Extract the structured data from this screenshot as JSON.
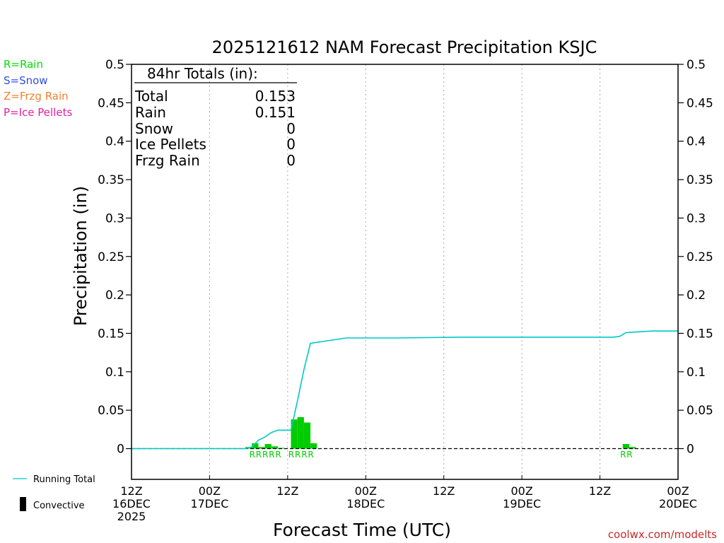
{
  "chart_data": {
    "type": "bar",
    "title": "2025121612 NAM Forecast Precipitation KSJC",
    "ylabel": "Precipitation (in)",
    "xlabel": "Forecast Time (UTC)",
    "ylim": [
      -0.04,
      0.5
    ],
    "y_ticks": [
      0,
      0.05,
      0.1,
      0.15,
      0.2,
      0.25,
      0.3,
      0.35,
      0.4,
      0.45,
      0.5
    ],
    "y_tick_labels": [
      "0",
      "0.05",
      "0.1",
      "0.15",
      "0.2",
      "0.25",
      "0.3",
      "0.35",
      "0.4",
      "0.45",
      "0.5"
    ],
    "x_range_hours": [
      0,
      84
    ],
    "x_ticks": [
      {
        "hour": 0,
        "lines": [
          "12Z",
          "16DEC",
          "2025"
        ]
      },
      {
        "hour": 12,
        "lines": [
          "00Z",
          "17DEC"
        ]
      },
      {
        "hour": 24,
        "lines": [
          "12Z"
        ]
      },
      {
        "hour": 36,
        "lines": [
          "00Z",
          "18DEC"
        ]
      },
      {
        "hour": 48,
        "lines": [
          "12Z"
        ]
      },
      {
        "hour": 60,
        "lines": [
          "00Z",
          "19DEC"
        ]
      },
      {
        "hour": 72,
        "lines": [
          "12Z"
        ]
      },
      {
        "hour": 84,
        "lines": [
          "00Z",
          "20DEC"
        ]
      }
    ],
    "gridlines_hours": [
      12,
      24,
      36,
      48,
      60,
      72
    ],
    "grid": true,
    "bars": {
      "name": "Rain",
      "color": "#00cc00",
      "hours": [
        18,
        19,
        20,
        21,
        22,
        23,
        25,
        26,
        27,
        28,
        76,
        77
      ],
      "values": [
        0.002,
        0.007,
        0.002,
        0.006,
        0.003,
        0.001,
        0.038,
        0.041,
        0.034,
        0.007,
        0.006,
        0.002
      ]
    },
    "ptype_labels": {
      "color": "#00cc00",
      "hours": [
        19,
        20,
        21,
        22,
        23,
        25,
        26,
        27,
        28,
        76,
        77
      ],
      "text": [
        "R",
        "R",
        "R",
        "R",
        "R",
        "R",
        "R",
        "R",
        "R",
        "R",
        "R"
      ]
    },
    "running_total": {
      "name": "Running Total",
      "color": "#00c8c8",
      "hours": [
        0,
        17.5,
        18.5,
        19.5,
        20.5,
        21.5,
        22.5,
        23.5,
        24.5,
        25.5,
        26.5,
        27.5,
        33,
        41,
        50,
        60,
        70,
        74,
        75,
        76,
        80,
        84
      ],
      "values": [
        0,
        0,
        0.002,
        0.011,
        0.015,
        0.021,
        0.024,
        0.024,
        0.024,
        0.062,
        0.103,
        0.137,
        0.144,
        0.144,
        0.145,
        0.145,
        0.145,
        0.145,
        0.146,
        0.151,
        0.153,
        0.153
      ]
    }
  },
  "totals_box": {
    "header": "84hr Totals (in):",
    "rows": [
      {
        "label": "Total",
        "value": "0.153"
      },
      {
        "label": "Rain",
        "value": "0.151"
      },
      {
        "label": "Snow",
        "value": "0"
      },
      {
        "label": "Ice Pellets",
        "value": "0"
      },
      {
        "label": "Frzg Rain",
        "value": "0"
      }
    ]
  },
  "ptype_legend": [
    {
      "text": "R=Rain",
      "color": "#00dd00"
    },
    {
      "text": "S=Snow",
      "color": "#3050e0"
    },
    {
      "text": "Z=Frzg Rain",
      "color": "#f08030"
    },
    {
      "text": "P=Ice Pellets",
      "color": "#e020a0"
    }
  ],
  "series_legend": {
    "running_total": "Running Total",
    "convective": "Convective",
    "convective_color": "#000000"
  },
  "credit": {
    "text": "coolwx.com/modelts",
    "color": "#c82828"
  }
}
